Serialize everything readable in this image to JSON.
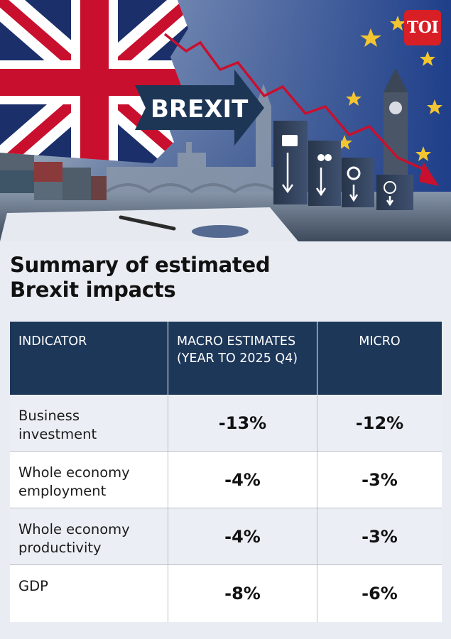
{
  "header": {
    "image_label": "BREXIT",
    "logo_text": "TOI"
  },
  "title": "Summary of estimated Brexit impacts",
  "table": {
    "columns": [
      "INDICATOR",
      "MACRO ESTIMATES (YEAR TO 2025 Q4)",
      "MICRO"
    ],
    "rows": [
      {
        "indicator": "Business investment",
        "macro": "-13%",
        "micro": "-12%"
      },
      {
        "indicator": "Whole economy employment",
        "macro": "-4%",
        "micro": "-3%"
      },
      {
        "indicator": "Whole economy productivity",
        "macro": "-4%",
        "micro": "-3%"
      },
      {
        "indicator": "GDP",
        "macro": "-8%",
        "micro": "-6%"
      }
    ]
  },
  "colors": {
    "header_navy": "#1d3759",
    "page_background": "#e9edf3",
    "logo_red": "#d81f26",
    "trend_red": "#c8102e"
  }
}
